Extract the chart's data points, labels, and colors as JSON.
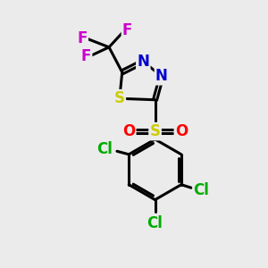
{
  "background_color": "#ebebeb",
  "bond_color": "#000000",
  "bond_width": 2.2,
  "atom_colors": {
    "C": "#000000",
    "N": "#0000cc",
    "S_ring": "#cccc00",
    "S_sulfonyl": "#cccc00",
    "O": "#ff0000",
    "F": "#cc00cc",
    "Cl": "#00aa00"
  },
  "font_size_atom": 12
}
